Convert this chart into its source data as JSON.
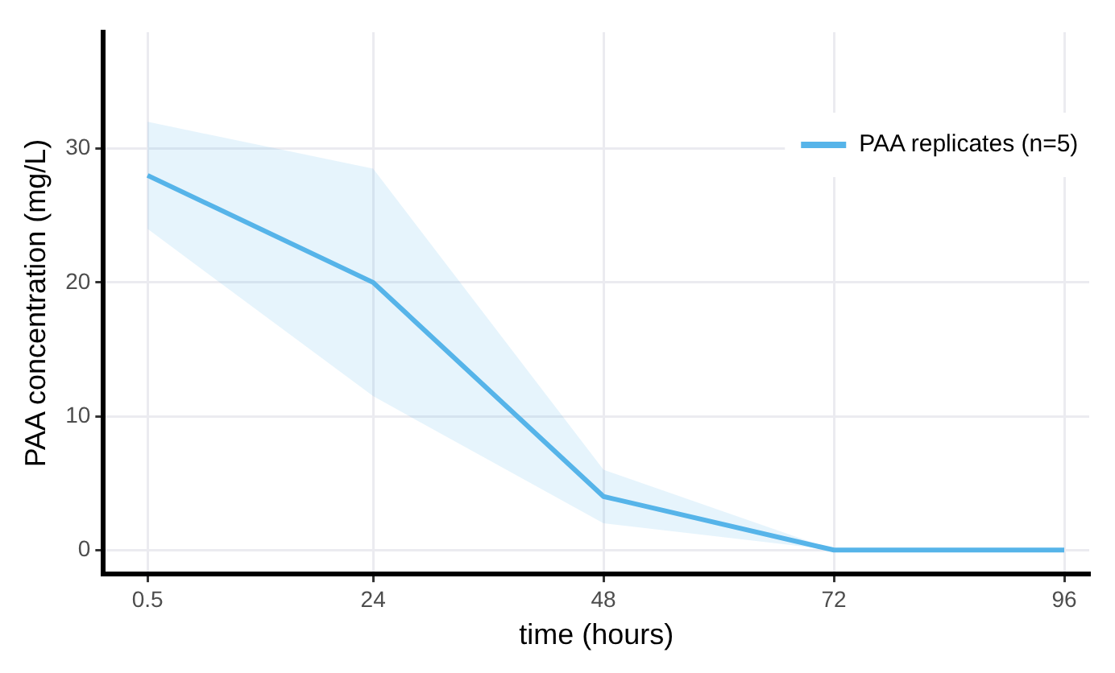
{
  "chart_data": {
    "type": "line",
    "xlabel": "time (hours)",
    "ylabel": "PAA concentration (mg/L)",
    "x": [
      0.5,
      24,
      48,
      72,
      96
    ],
    "series": [
      {
        "name": "PAA replicates (n=5)",
        "color": "#56b4e9",
        "values": [
          28,
          20,
          4,
          0,
          0
        ],
        "lower": [
          24,
          11.5,
          2,
          0,
          0
        ],
        "upper": [
          32,
          28.5,
          6,
          0,
          0
        ]
      }
    ],
    "xlim": [
      -4.1,
      98.6
    ],
    "xticks": [
      0.5,
      24,
      48,
      72,
      96
    ],
    "ylim": [
      -1.8,
      38.7
    ],
    "yticks": [
      0,
      10,
      20,
      30
    ],
    "grid": true,
    "legend": "top right",
    "marker": "none",
    "line_style": "solid"
  }
}
